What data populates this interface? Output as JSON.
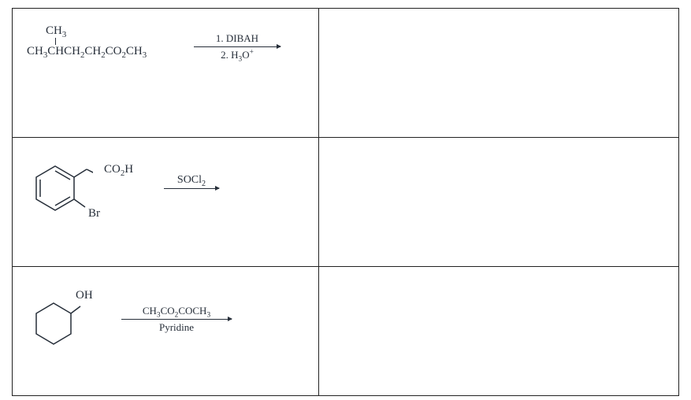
{
  "cell1": {
    "branch": "CH<sub>3</sub>",
    "main": "CH<sub>3</sub>CHCH<sub>2</sub>CH<sub>2</sub>CO<sub>2</sub>CH<sub>3</sub>",
    "reagent_top": "1. DIBAH",
    "reagent_bot": "2. H<sub>3</sub>O<sup>+</sup>"
  },
  "cell2": {
    "sub1": "CO<sub>2</sub>H",
    "sub2": "Br",
    "reagent": "SOCl<sub>2</sub>",
    "ring_svg": {
      "stroke": "#262e39",
      "stroke_width": 1.5
    }
  },
  "cell3": {
    "sub1": "OH",
    "reagent_top": "CH<sub>3</sub>CO<sub>2</sub>COCH<sub>3</sub>",
    "reagent_bot": "Pyridine",
    "ring_svg": {
      "stroke": "#262e39",
      "stroke_width": 1.5
    }
  },
  "style": {
    "text_color": "#262e39",
    "border_color": "#222222",
    "background": "#ffffff"
  }
}
